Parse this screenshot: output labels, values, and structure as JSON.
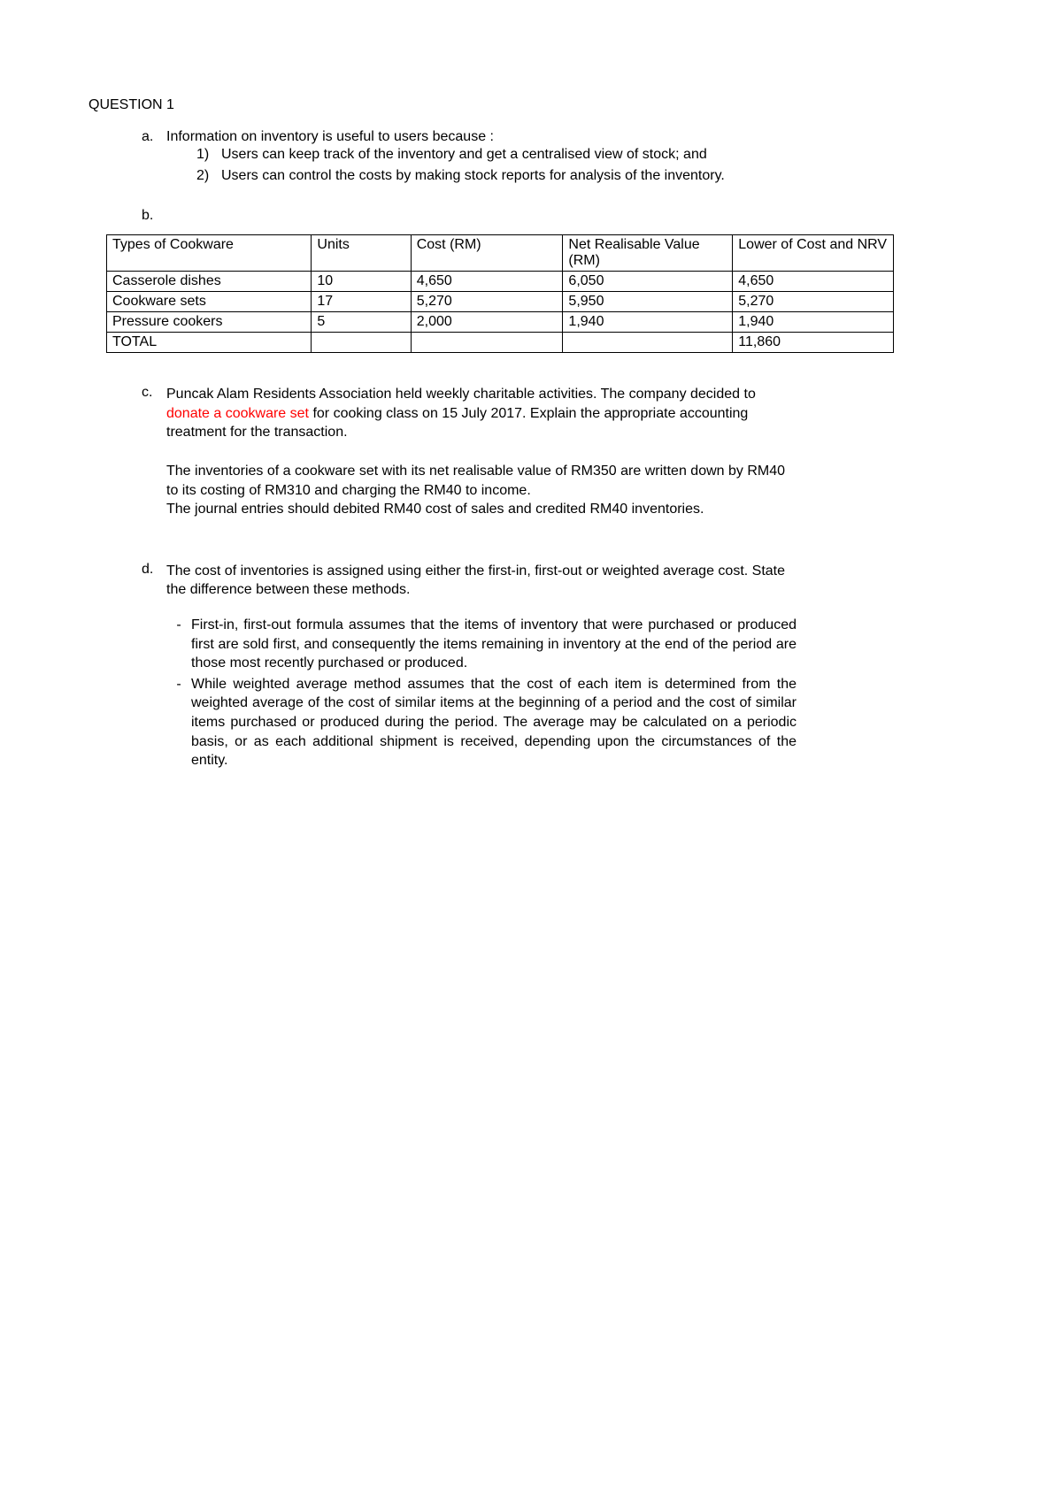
{
  "heading": "QUESTION 1",
  "a": {
    "marker": "a.",
    "intro": "Information on inventory is useful to users because :",
    "items": [
      {
        "marker": "1)",
        "text": "Users can keep track of the inventory and get a centralised view of stock; and"
      },
      {
        "marker": "2)",
        "text": "Users can control the costs by making stock reports for analysis of the inventory."
      }
    ]
  },
  "b": {
    "marker": "b.",
    "table": {
      "columns": [
        "Types of Cookware",
        "Units",
        "Cost (RM)",
        "Net Realisable Value (RM)",
        "Lower of Cost and NRV"
      ],
      "rows": [
        [
          "Casserole dishes",
          "10",
          "4,650",
          "6,050",
          "4,650"
        ],
        [
          "Cookware sets",
          "17",
          "5,270",
          "5,950",
          "5,270"
        ],
        [
          "Pressure cookers",
          "5",
          "2,000",
          "1,940",
          "1,940"
        ],
        [
          "TOTAL",
          "",
          "",
          "",
          "11,860"
        ]
      ]
    }
  },
  "c": {
    "marker": "c.",
    "q_pre": "Puncak Alam Residents Association held weekly charitable activities. The company decided to ",
    "q_red": "donate a cookware set",
    "q_post": " for cooking class on 15 July 2017. Explain the appropriate accounting treatment for the transaction.",
    "ans1": "The inventories of a cookware set with its net realisable value of RM350 are written down by RM40 to its costing of RM310 and charging the RM40 to income.",
    "ans2": "The journal entries should debited RM40 cost of sales and credited RM40 inventories."
  },
  "d": {
    "marker": "d.",
    "q": "The cost of inventories is assigned using either the first-in, first-out or weighted average cost. State the difference between these methods.",
    "items": [
      {
        "marker": "-",
        "text": "First-in, first-out formula assumes that the items of inventory that were purchased or produced first are sold first, and consequently the items remaining in inventory at the end of the period are those most recently purchased or produced."
      },
      {
        "marker": "-",
        "text": "While weighted average method assumes that the cost of each item is determined from the weighted average of the cost of similar items at the beginning of a period and the cost of similar items purchased or produced during the period. The average may be calculated on a periodic basis, or as each additional shipment is received, depending upon the circumstances of the entity."
      }
    ]
  },
  "colors": {
    "text": "#000000",
    "highlight": "#ff0000",
    "background": "#ffffff",
    "border": "#000000"
  }
}
